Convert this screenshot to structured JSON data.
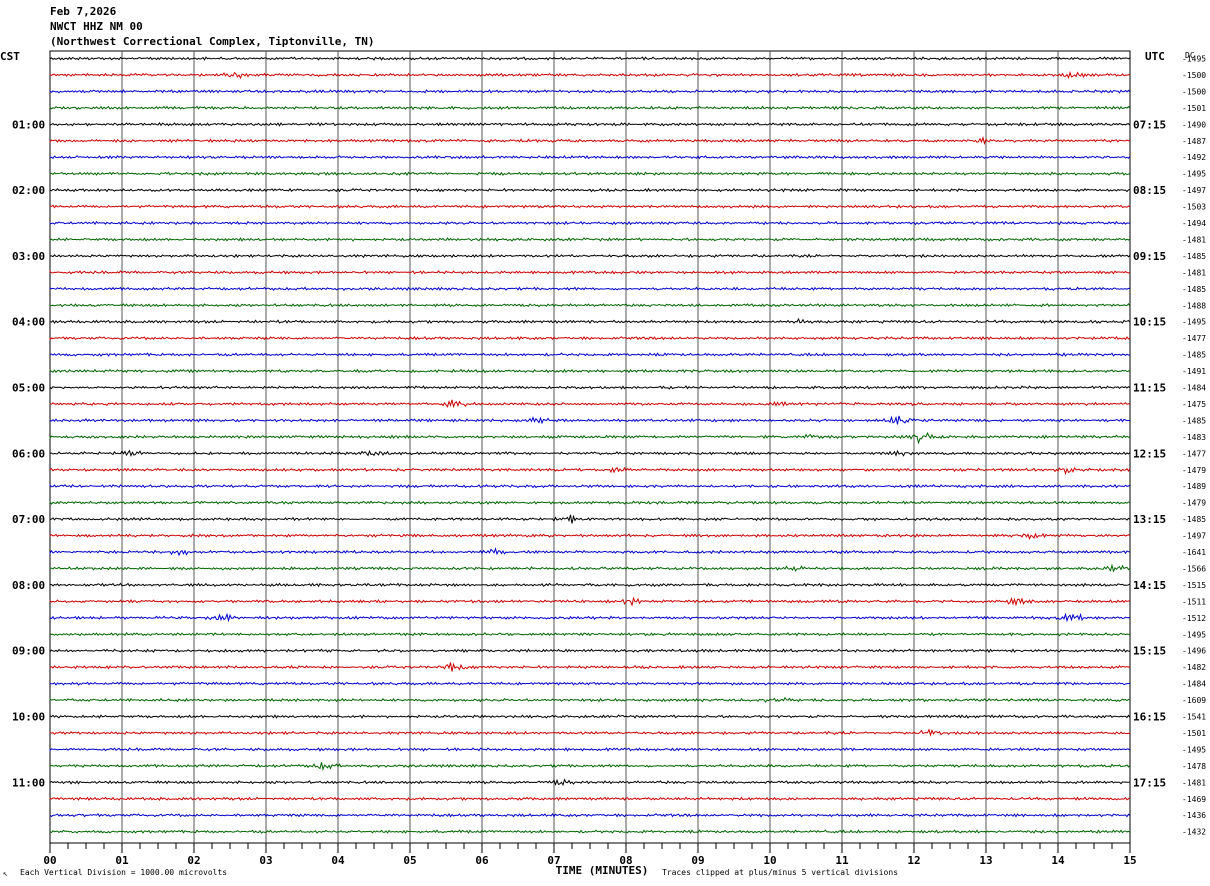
{
  "header": {
    "date": "Feb 7,2026",
    "station": "NWCT HHZ NM 00",
    "location": "(Northwest Correctional Complex, Tiptonville, TN)"
  },
  "chart_data": {
    "type": "line",
    "subtype": "helicorder",
    "left_timezone": "CST",
    "right_timezone": "UTC",
    "dc_label": "DC",
    "xlabel": "TIME (MINUTES)",
    "x_ticks": [
      "00",
      "01",
      "02",
      "03",
      "04",
      "05",
      "06",
      "07",
      "08",
      "09",
      "10",
      "11",
      "12",
      "13",
      "14",
      "15"
    ],
    "xlim": [
      0,
      15
    ],
    "grid": true,
    "rows": 48,
    "trace_colors": [
      "#000000",
      "#cc0000",
      "#0000cc",
      "#006600"
    ],
    "left_hour_labels": [
      "01:00",
      "02:00",
      "03:00",
      "04:00",
      "05:00",
      "06:00",
      "07:00",
      "08:00",
      "09:00",
      "10:00",
      "11:00"
    ],
    "right_hour_labels": [
      "07:15",
      "08:15",
      "09:15",
      "10:15",
      "11:15",
      "12:15",
      "13:15",
      "14:15",
      "15:15",
      "16:15",
      "17:15"
    ],
    "dc_offsets": [
      "-1495",
      "-1500",
      "-1500",
      "-1501",
      "-1490",
      "-1487",
      "-1492",
      "-1495",
      "-1497",
      "-1503",
      "-1494",
      "-1481",
      "-1485",
      "-1481",
      "-1485",
      "-1488",
      "-1495",
      "-1477",
      "-1485",
      "-1491",
      "-1484",
      "-1475",
      "-1485",
      "-1483",
      "-1477",
      "-1479",
      "-1489",
      "-1479",
      "-1485",
      "-1497",
      "-1641",
      "-1566",
      "-1515",
      "-1511",
      "-1512",
      "-1495",
      "-1496",
      "-1482",
      "-1484",
      "-1609",
      "-1541",
      "-1501",
      "-1495",
      "-1478",
      "-1481",
      "-1469",
      "-1436",
      "-1432"
    ],
    "events": [
      {
        "row": 1,
        "minute": 2.6,
        "amp": 1.5
      },
      {
        "row": 1,
        "minute": 14.2,
        "amp": 1.5
      },
      {
        "row": 5,
        "minute": 12.9,
        "amp": 1.3
      },
      {
        "row": 16,
        "minute": 10.4,
        "amp": 1.8
      },
      {
        "row": 21,
        "minute": 5.6,
        "amp": 2.2
      },
      {
        "row": 21,
        "minute": 10.1,
        "amp": 1.3
      },
      {
        "row": 22,
        "minute": 6.8,
        "amp": 1.8
      },
      {
        "row": 22,
        "minute": 11.8,
        "amp": 2
      },
      {
        "row": 23,
        "minute": 10.5,
        "amp": 1.6
      },
      {
        "row": 23,
        "minute": 12.1,
        "amp": 3.5
      },
      {
        "row": 24,
        "minute": 1.1,
        "amp": 1.6
      },
      {
        "row": 24,
        "minute": 4.5,
        "amp": 1.6
      },
      {
        "row": 24,
        "minute": 11.8,
        "amp": 1.6
      },
      {
        "row": 25,
        "minute": 7.9,
        "amp": 1.5
      },
      {
        "row": 25,
        "minute": 14.1,
        "amp": 1.5
      },
      {
        "row": 28,
        "minute": 7.2,
        "amp": 2.5
      },
      {
        "row": 29,
        "minute": 13.6,
        "amp": 1.6
      },
      {
        "row": 30,
        "minute": 1.8,
        "amp": 1.6
      },
      {
        "row": 30,
        "minute": 6.2,
        "amp": 1.4
      },
      {
        "row": 31,
        "minute": 10.3,
        "amp": 1.5
      },
      {
        "row": 31,
        "minute": 14.8,
        "amp": 1.6
      },
      {
        "row": 33,
        "minute": 8.1,
        "amp": 1.5
      },
      {
        "row": 33,
        "minute": 13.4,
        "amp": 1.6
      },
      {
        "row": 34,
        "minute": 2.4,
        "amp": 1.8
      },
      {
        "row": 34,
        "minute": 14.2,
        "amp": 2.2
      },
      {
        "row": 37,
        "minute": 5.6,
        "amp": 2.2
      },
      {
        "row": 39,
        "minute": 10.1,
        "amp": 2.2
      },
      {
        "row": 41,
        "minute": 12.2,
        "amp": 1.5
      },
      {
        "row": 43,
        "minute": 3.8,
        "amp": 1.8
      },
      {
        "row": 44,
        "minute": 7.1,
        "amp": 1.4
      }
    ]
  },
  "footer": {
    "left": "Each Vertical Division = 1000.00 microvolts",
    "right": "Traces clipped at plus/minus 5 vertical divisions"
  }
}
